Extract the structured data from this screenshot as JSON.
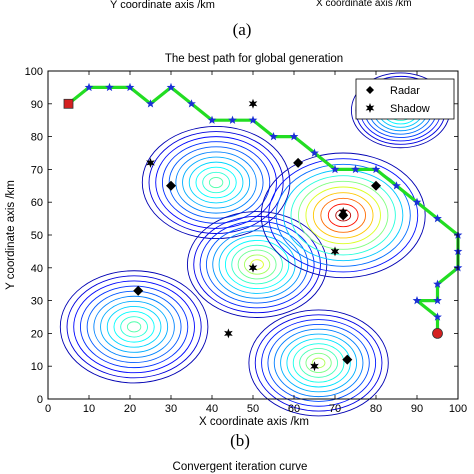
{
  "top_fragment": {
    "left_text": "Y coordinate axis /km",
    "right_text": "X coordinate axis /km",
    "caption": "(a)"
  },
  "chart_data": {
    "type": "scatter",
    "title": "The best path for global generation",
    "xlabel": "X coordinate axis /km",
    "ylabel": "Y coordinate axis /km",
    "xlim": [
      0,
      100
    ],
    "ylim": [
      0,
      100
    ],
    "xticks": [
      "0",
      "10",
      "20",
      "30",
      "40",
      "50",
      "60",
      "70",
      "80",
      "90",
      "100"
    ],
    "yticks": [
      "0",
      "10",
      "20",
      "30",
      "40",
      "50",
      "60",
      "70",
      "80",
      "90",
      "100"
    ],
    "grid": false,
    "legend": {
      "placement": "top-right",
      "entries": [
        {
          "label": "Radar",
          "marker": "diamond"
        },
        {
          "label": "Shadow",
          "marker": "hexagram"
        }
      ]
    },
    "path": {
      "color": "#22dd22",
      "marker_color": "#1a2fd6",
      "points": [
        [
          5,
          90
        ],
        [
          10,
          95
        ],
        [
          15,
          95
        ],
        [
          20,
          95
        ],
        [
          25,
          90
        ],
        [
          30,
          95
        ],
        [
          35,
          90
        ],
        [
          40,
          85
        ],
        [
          45,
          85
        ],
        [
          50,
          85
        ],
        [
          55,
          80
        ],
        [
          60,
          80
        ],
        [
          65,
          75
        ],
        [
          70,
          70
        ],
        [
          75,
          70
        ],
        [
          80,
          70
        ],
        [
          85,
          65
        ],
        [
          90,
          60
        ],
        [
          95,
          55
        ],
        [
          100,
          50
        ],
        [
          100,
          45
        ],
        [
          100,
          40
        ],
        [
          95,
          35
        ],
        [
          95,
          30
        ],
        [
          90,
          30
        ],
        [
          95,
          25
        ],
        [
          95,
          20
        ]
      ]
    },
    "start": {
      "x": 5,
      "y": 90,
      "color": "#d42020"
    },
    "goal": {
      "x": 95,
      "y": 20,
      "color": "#d42020"
    },
    "series": [
      {
        "name": "Radar",
        "marker": "diamond",
        "points": [
          [
            22,
            33
          ],
          [
            30,
            65
          ],
          [
            61,
            72
          ],
          [
            72,
            56
          ],
          [
            80,
            65
          ],
          [
            73,
            12
          ]
        ]
      },
      {
        "name": "Shadow",
        "marker": "hexagram",
        "points": [
          [
            25,
            72
          ],
          [
            50,
            90
          ],
          [
            44,
            20
          ],
          [
            50,
            40
          ],
          [
            65,
            10
          ],
          [
            70,
            45
          ],
          [
            72,
            57
          ]
        ]
      }
    ],
    "threat_contours": [
      {
        "x": 21,
        "y": 22,
        "r": 18,
        "hot": 0.45
      },
      {
        "x": 41,
        "y": 66,
        "r": 18,
        "hot": 0.45
      },
      {
        "x": 51,
        "y": 41,
        "r": 17,
        "hot": 0.6
      },
      {
        "x": 66,
        "y": 11,
        "r": 17,
        "hot": 0.55
      },
      {
        "x": 72,
        "y": 56,
        "r": 20,
        "hot": 1.0
      },
      {
        "x": 86,
        "y": 88,
        "r": 12,
        "hot": 0.5
      }
    ],
    "caption": "(b)"
  },
  "bottom_fragment": {
    "title": "Convergent iteration curve"
  }
}
